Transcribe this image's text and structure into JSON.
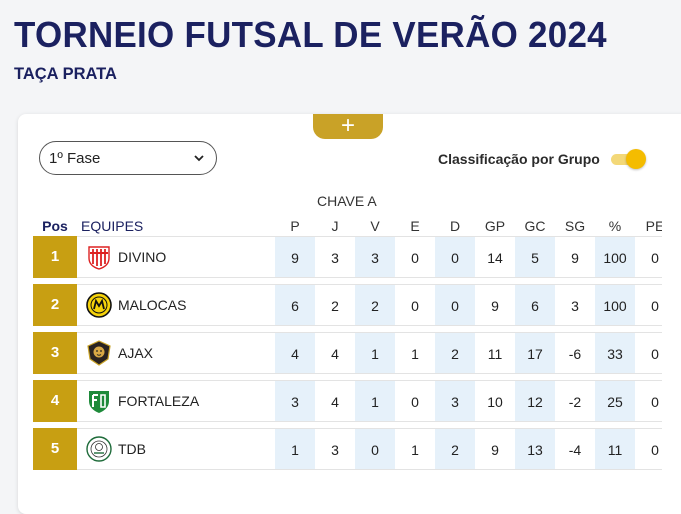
{
  "page": {
    "title": "TORNEIO FUTSAL DE VERÃO 2024",
    "subtitle": "TAÇA PRATA"
  },
  "controls": {
    "add_symbol": "+",
    "phase_value": "1º Fase",
    "toggle_label": "Classificação por Grupo",
    "toggle_on": true
  },
  "colors": {
    "brand_navy": "#1b2160",
    "gold": "#c89f12",
    "toggle_knob": "#f4bc00",
    "column_shade": "#e6f1fa"
  },
  "standings": {
    "group": "CHAVE A",
    "headers": {
      "pos": "Pos",
      "teams": "EQUIPES",
      "p": "P",
      "j": "J",
      "v": "V",
      "e": "E",
      "d": "D",
      "gp": "GP",
      "gc": "GC",
      "sg": "SG",
      "pct": "%",
      "pe": "PE"
    },
    "rows": [
      {
        "pos": "1",
        "team": "DIVINO",
        "logo": "divino-crest-icon",
        "p": "9",
        "j": "3",
        "v": "3",
        "e": "0",
        "d": "0",
        "gp": "14",
        "gc": "5",
        "sg": "9",
        "pct": "100",
        "pe": "0"
      },
      {
        "pos": "2",
        "team": "MALOCAS",
        "logo": "malocas-crest-icon",
        "p": "6",
        "j": "2",
        "v": "2",
        "e": "0",
        "d": "0",
        "gp": "9",
        "gc": "6",
        "sg": "3",
        "pct": "100",
        "pe": "0"
      },
      {
        "pos": "3",
        "team": "AJAX",
        "logo": "ajax-lion-crest-icon",
        "p": "4",
        "j": "4",
        "v": "1",
        "e": "1",
        "d": "2",
        "gp": "11",
        "gc": "17",
        "sg": "-6",
        "pct": "33",
        "pe": "0"
      },
      {
        "pos": "4",
        "team": "FORTALEZA",
        "logo": "fortaleza-crest-icon",
        "p": "3",
        "j": "4",
        "v": "1",
        "e": "0",
        "d": "3",
        "gp": "10",
        "gc": "12",
        "sg": "-2",
        "pct": "25",
        "pe": "0"
      },
      {
        "pos": "5",
        "team": "TDB",
        "logo": "tdb-crest-icon",
        "p": "1",
        "j": "3",
        "v": "0",
        "e": "1",
        "d": "2",
        "gp": "9",
        "gc": "13",
        "sg": "-4",
        "pct": "11",
        "pe": "0"
      }
    ]
  }
}
